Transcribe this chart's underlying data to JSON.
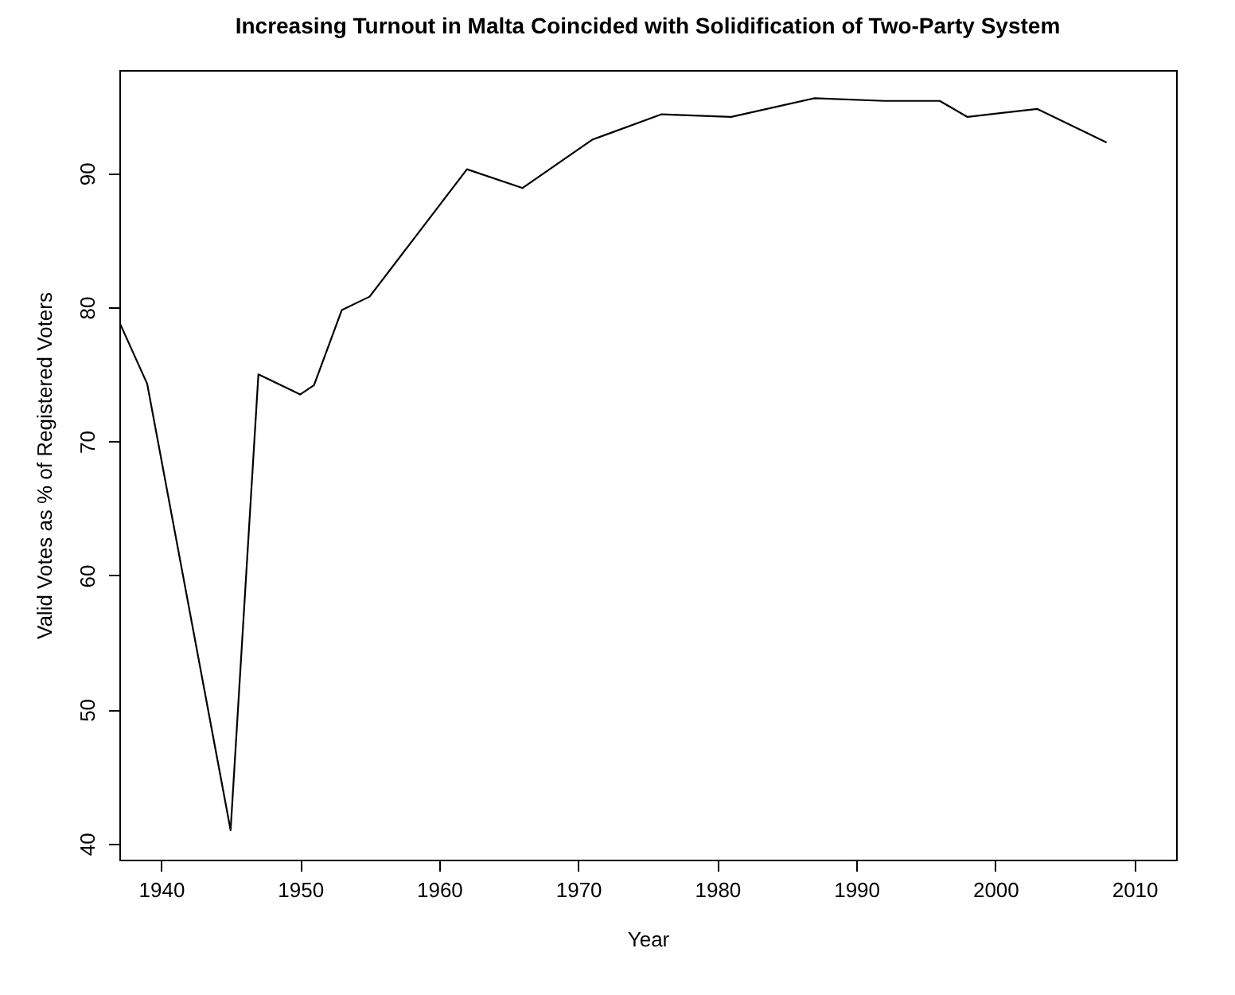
{
  "chart_data": {
    "type": "line",
    "title": "Increasing Turnout in Malta Coincided with Solidification of Two-Party System",
    "xlabel": "Year",
    "ylabel": "Valid Votes as % of Registered Voters",
    "x": [
      1937,
      1939,
      1945,
      1947,
      1950,
      1951,
      1953,
      1955,
      1962,
      1966,
      1971,
      1976,
      1981,
      1987,
      1992,
      1996,
      1998,
      2003,
      2008
    ],
    "series": [
      {
        "color": "#000000",
        "values": [
          78.9,
          74.3,
          41.0,
          75.0,
          73.5,
          74.2,
          79.8,
          80.8,
          90.3,
          88.9,
          92.5,
          94.4,
          94.2,
          95.6,
          95.4,
          95.4,
          94.2,
          94.8,
          92.3
        ]
      }
    ],
    "xlim": [
      1937,
      2013
    ],
    "xticks": [
      1940,
      1950,
      1960,
      1970,
      1980,
      1990,
      2000,
      2010
    ],
    "ylim": [
      38.8,
      97.7
    ],
    "yticks": [
      40,
      50,
      60,
      70,
      80,
      90
    ],
    "grid": false,
    "marker": "none",
    "line_style": "solid"
  }
}
